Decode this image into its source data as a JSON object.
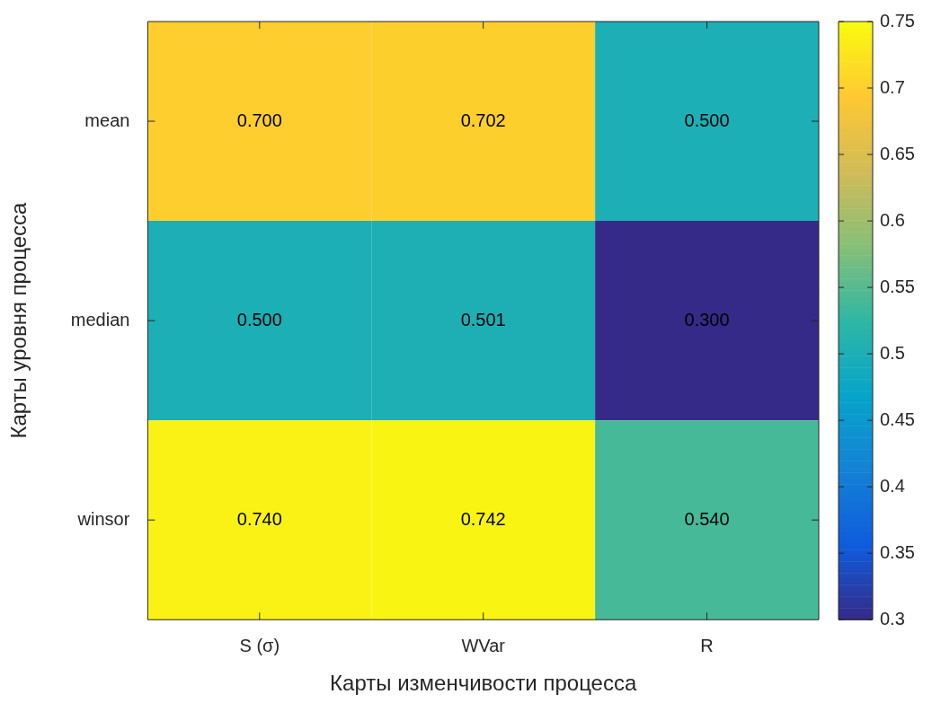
{
  "chart_data": {
    "type": "heatmap",
    "xlabel": "Карты изменчивости процесса",
    "ylabel": "Карты уровня процесса",
    "categories": [
      "S (σ)",
      "WVar",
      "R"
    ],
    "y_categories": [
      "mean",
      "median",
      "winsor"
    ],
    "cells": [
      [
        0.7,
        0.702,
        0.5
      ],
      [
        0.5,
        0.501,
        0.3
      ],
      [
        0.74,
        0.742,
        0.54
      ]
    ],
    "cell_labels": [
      [
        "0.700",
        "0.702",
        "0.500"
      ],
      [
        "0.500",
        "0.501",
        "0.300"
      ],
      [
        "0.740",
        "0.742",
        "0.540"
      ]
    ],
    "clim": [
      0.3,
      0.75
    ],
    "cticks": [
      0.3,
      0.35,
      0.4,
      0.45,
      0.5,
      0.55,
      0.6,
      0.65,
      0.7,
      0.75
    ]
  }
}
